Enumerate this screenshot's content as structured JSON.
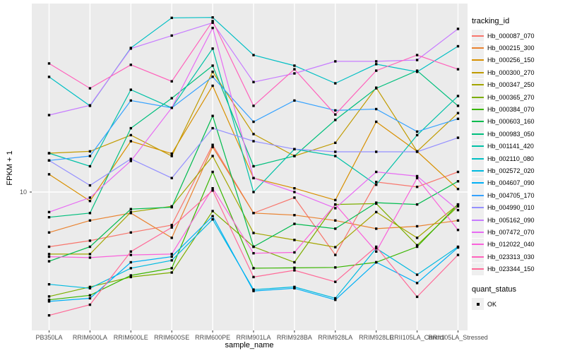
{
  "chart_data": {
    "type": "line",
    "title": "",
    "xlabel": "sample_name",
    "ylabel": "FPKM + 1",
    "y_scale": "log10",
    "y_ticks": [
      {
        "label": "10",
        "value": 10
      }
    ],
    "x_categories": [
      "PB350LA",
      "RRIM600LA",
      "RRIM600LE",
      "RRIM600SE",
      "RRIM600PE",
      "RRIM901LA",
      "RRIM928BA",
      "RRIM928LA",
      "RRIM928LE",
      "RRII105LA_Control",
      "RRII105LA_Stressed"
    ],
    "legend_position": "right",
    "grid": "major-only",
    "point_shape": "filled-square",
    "point_color": "#000000",
    "series": [
      {
        "name": "Hb_000087_070",
        "color": "#F8766D",
        "values": [
          4.9,
          5.3,
          5.9,
          6.5,
          18.5,
          7.6,
          9.3,
          4.4,
          11.4,
          10.7,
          13.0
        ]
      },
      {
        "name": "Hb_000215_300",
        "color": "#EA8331",
        "values": [
          5.9,
          6.9,
          7.6,
          5.5,
          18.0,
          7.6,
          7.4,
          6.9,
          6.2,
          6.4,
          6.9
        ]
      },
      {
        "name": "Hb_000256_150",
        "color": "#D89000",
        "values": [
          12.6,
          8.9,
          19.4,
          16.5,
          40.0,
          12.0,
          10.5,
          9.0,
          25.0,
          17.0,
          10.4
        ]
      },
      {
        "name": "Hb_000300_270",
        "color": "#C09B00",
        "values": [
          16.6,
          17.0,
          21.0,
          16.0,
          48.0,
          21.3,
          16.0,
          19.0,
          39.0,
          17.0,
          28.0
        ]
      },
      {
        "name": "Hb_000347_250",
        "color": "#A3A500",
        "values": [
          4.45,
          4.45,
          7.7,
          8.3,
          16.0,
          5.86,
          5.35,
          4.87,
          7.7,
          5.5,
          8.5
        ]
      },
      {
        "name": "Hb_000365_270",
        "color": "#7CAE00",
        "values": [
          2.56,
          2.9,
          3.3,
          3.5,
          7.8,
          4.9,
          4.0,
          8.5,
          8.6,
          5.0,
          8.3
        ]
      },
      {
        "name": "Hb_000384_070",
        "color": "#39B600",
        "values": [
          2.45,
          2.6,
          3.37,
          3.7,
          13.0,
          3.7,
          3.72,
          3.74,
          4.0,
          4.9,
          8.5
        ]
      },
      {
        "name": "Hb_000603_160",
        "color": "#00BB4E",
        "values": [
          4.05,
          4.9,
          8.0,
          8.2,
          27.0,
          4.9,
          6.6,
          6.2,
          8.7,
          8.5,
          11.5
        ]
      },
      {
        "name": "Hb_000983_050",
        "color": "#00BF7D",
        "values": [
          7.2,
          7.6,
          23.0,
          34.0,
          52.0,
          14.0,
          16.0,
          25.6,
          38.7,
          48.7,
          30.8
        ]
      },
      {
        "name": "Hb_001141_420",
        "color": "#00C1A7",
        "values": [
          16.6,
          14.0,
          38.0,
          30.0,
          65.0,
          10.0,
          17.5,
          16.0,
          11.0,
          21.0,
          35.0
        ]
      },
      {
        "name": "Hb_002110_080",
        "color": "#00BFC4",
        "values": [
          44.9,
          30.8,
          65.5,
          97.0,
          97.5,
          59.7,
          52.0,
          41.3,
          53.0,
          48.0,
          67.0
        ]
      },
      {
        "name": "Hb_002572_020",
        "color": "#00BAE0",
        "values": [
          3.0,
          2.85,
          3.7,
          4.1,
          7.0,
          2.8,
          2.9,
          2.5,
          4.8,
          3.4,
          4.9
        ]
      },
      {
        "name": "Hb_004607_090",
        "color": "#00B0F6",
        "values": [
          2.4,
          2.5,
          4.0,
          4.3,
          7.3,
          2.75,
          2.85,
          2.45,
          4.0,
          3.05,
          4.85
        ]
      },
      {
        "name": "Hb_004705_170",
        "color": "#35A2FF",
        "values": [
          15.1,
          16.0,
          33.0,
          30.0,
          45.0,
          25.0,
          33.0,
          29.0,
          29.5,
          22.0,
          26.0
        ]
      },
      {
        "name": "Hb_004990_010",
        "color": "#9590FF",
        "values": [
          15.1,
          10.9,
          15.4,
          12.0,
          23.0,
          19.4,
          17.5,
          16.9,
          16.9,
          16.9,
          20.3
        ]
      },
      {
        "name": "Hb_005162_090",
        "color": "#C77CFF",
        "values": [
          27.3,
          31.0,
          65.0,
          77.0,
          91.0,
          42.0,
          47.0,
          55.0,
          55.0,
          56.0,
          84.0
        ]
      },
      {
        "name": "Hb_007472_070",
        "color": "#E76BF3",
        "values": [
          7.7,
          9.3,
          15.0,
          30.0,
          85.0,
          12.0,
          10.0,
          8.1,
          13.0,
          12.3,
          7.9
        ]
      },
      {
        "name": "Hb_012022_040",
        "color": "#FA62DB",
        "values": [
          4.3,
          4.25,
          4.4,
          4.45,
          10.5,
          4.5,
          4.55,
          8.5,
          4.6,
          12.0,
          6.1
        ]
      },
      {
        "name": "Hb_023313_030",
        "color": "#FF62BC",
        "values": [
          53.5,
          38.7,
          52.6,
          42.4,
          93.0,
          30.8,
          49.6,
          27.5,
          48.7,
          59.7,
          49.6
        ]
      },
      {
        "name": "Hb_023344_150",
        "color": "#FF6A98",
        "values": [
          2.0,
          2.3,
          4.6,
          6.3,
          10.2,
          3.3,
          3.6,
          3.1,
          4.9,
          2.55,
          4.4
        ]
      }
    ]
  },
  "legend": {
    "tracking_title": "tracking_id",
    "quant_title": "quant_status",
    "quant_items": [
      {
        "label": "OK"
      }
    ]
  },
  "colors": {
    "panel_bg": "#EBEBEB",
    "grid": "#FFFFFF",
    "tick_text": "#4D4D4D",
    "tick_mark": "#333333",
    "point": "#000000"
  }
}
